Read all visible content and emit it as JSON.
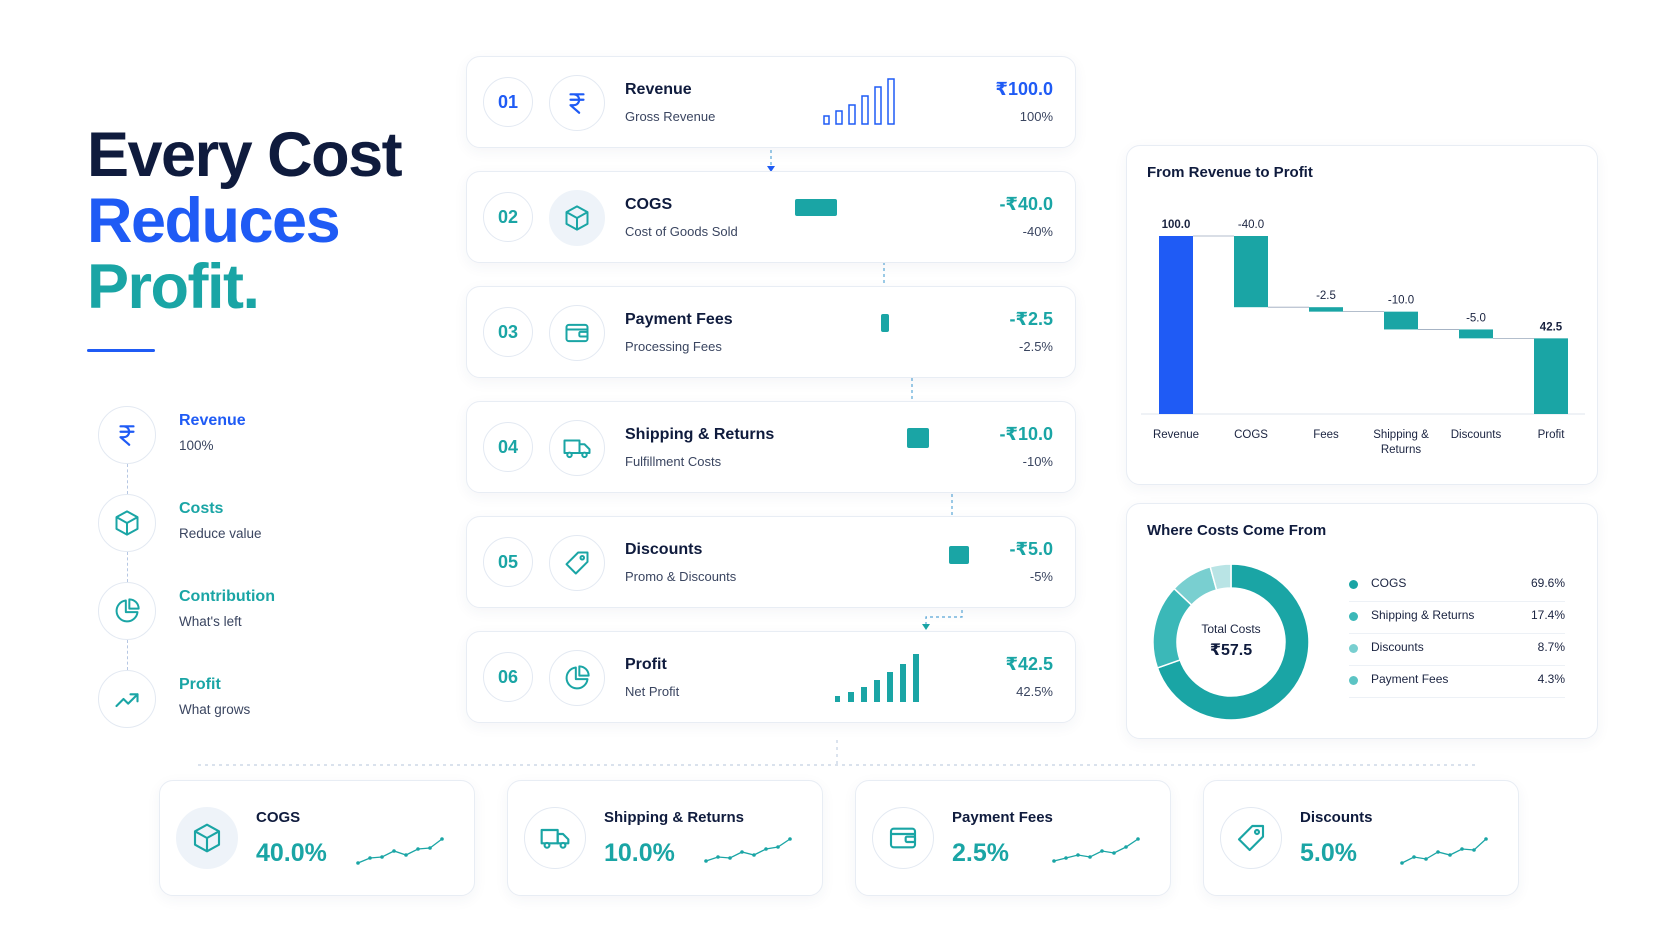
{
  "hero": {
    "line1": "Every Cost",
    "line2": "Reduces",
    "line3": "Profit."
  },
  "legend": [
    {
      "title": "Revenue",
      "sub": "100%",
      "icon": "rupee-icon",
      "color": "#1f5bf5"
    },
    {
      "title": "Costs",
      "sub": "Reduce value",
      "icon": "box-icon",
      "color": "#1aa5a5"
    },
    {
      "title": "Contribution",
      "sub": "What's left",
      "icon": "pie-chart-icon",
      "color": "#1aa5a5"
    },
    {
      "title": "Profit",
      "sub": "What grows",
      "icon": "trend-up-icon",
      "color": "#1aa5a5"
    }
  ],
  "steps": [
    {
      "num": "01",
      "title": "Revenue",
      "sub": "Gross Revenue",
      "value": "₹100.0",
      "pct": "100%",
      "icon": "rupee-icon",
      "color": "#1f5bf5"
    },
    {
      "num": "02",
      "title": "COGS",
      "sub": "Cost of Goods Sold",
      "value": "-₹40.0",
      "pct": "-40%",
      "icon": "box-icon",
      "color": "#1aa5a5"
    },
    {
      "num": "03",
      "title": "Payment Fees",
      "sub": "Processing Fees",
      "value": "-₹2.5",
      "pct": "-2.5%",
      "icon": "wallet-icon",
      "color": "#1aa5a5"
    },
    {
      "num": "04",
      "title": "Shipping & Returns",
      "sub": "Fulfillment Costs",
      "value": "-₹10.0",
      "pct": "-10%",
      "icon": "truck-icon",
      "color": "#1aa5a5"
    },
    {
      "num": "05",
      "title": "Discounts",
      "sub": "Promo & Discounts",
      "value": "-₹5.0",
      "pct": "-5%",
      "icon": "tag-icon",
      "color": "#1aa5a5"
    },
    {
      "num": "06",
      "title": "Profit",
      "sub": "Net Profit",
      "value": "₹42.5",
      "pct": "42.5%",
      "icon": "pie-chart-icon",
      "color": "#1aa5a5"
    }
  ],
  "waterfall": {
    "title": "From Revenue to Profit",
    "chart_data": {
      "type": "bar",
      "categories": [
        "Revenue",
        "COGS",
        "Fees",
        "Shipping & Returns",
        "Discounts",
        "Profit"
      ],
      "values": [
        100.0,
        -40.0,
        -2.5,
        -10.0,
        -5.0,
        42.5
      ],
      "value_labels": [
        "100.0",
        "-40.0",
        "-2.5",
        "-10.0",
        "-5.0",
        "42.5"
      ],
      "colors": [
        "#1f5bf5",
        "#1aa5a5",
        "#1aa5a5",
        "#1aa5a5",
        "#1aa5a5",
        "#1aa5a5"
      ]
    }
  },
  "donut": {
    "title": "Where Costs Come From",
    "center_label": "Total Costs",
    "center_value": "₹57.5",
    "chart_data": {
      "type": "pie",
      "categories": [
        "COGS",
        "Shipping & Returns",
        "Discounts",
        "Payment Fees"
      ],
      "values": [
        69.6,
        17.4,
        8.7,
        4.3
      ],
      "labels": [
        "69.6%",
        "17.4%",
        "8.7%",
        "4.3%"
      ],
      "colors": [
        "#1aa5a5",
        "#3bb8b8",
        "#79cfd0",
        "#b9e4e5"
      ]
    }
  },
  "kpis": [
    {
      "title": "COGS",
      "value": "40.0%",
      "icon": "box-icon"
    },
    {
      "title": "Shipping & Returns",
      "value": "10.0%",
      "icon": "truck-icon"
    },
    {
      "title": "Payment Fees",
      "value": "2.5%",
      "icon": "wallet-icon"
    },
    {
      "title": "Discounts",
      "value": "5.0%",
      "icon": "tag-icon"
    }
  ]
}
